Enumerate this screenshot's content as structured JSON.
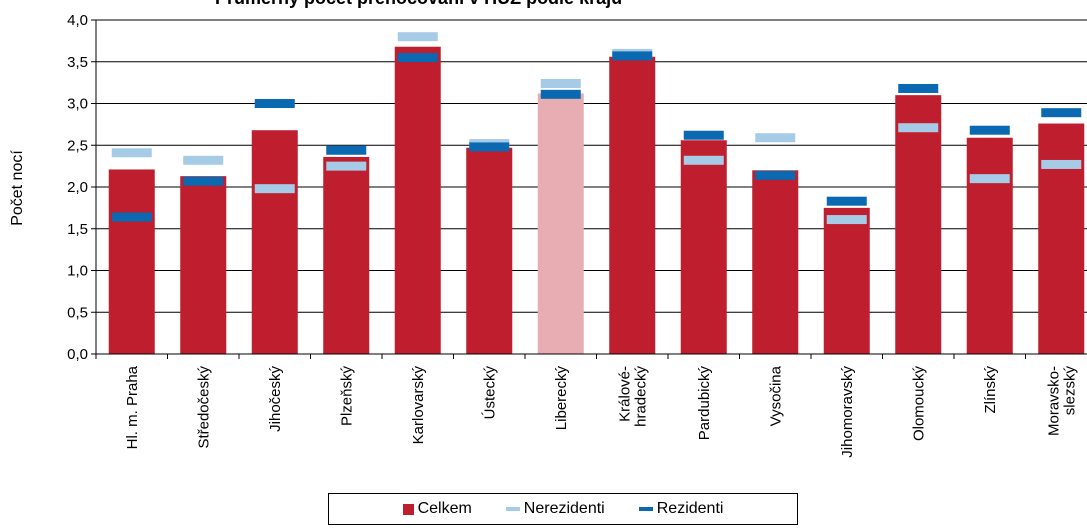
{
  "chart_data": {
    "type": "bar",
    "title": "",
    "ylabel": "Počet nocí",
    "ylim": [
      0,
      4
    ],
    "yticks": [
      "0,0",
      "0,5",
      "1,0",
      "1,5",
      "2,0",
      "2,5",
      "3,0",
      "3,5",
      "4,0"
    ],
    "categories": [
      [
        "Hl. m. Praha"
      ],
      [
        "Středočeský"
      ],
      [
        "Jihočeský"
      ],
      [
        "Plzeňský"
      ],
      [
        "Karlovarský"
      ],
      [
        "Ústecký"
      ],
      [
        "Liberecký"
      ],
      [
        "Králové-",
        "hradecký"
      ],
      [
        "Pardubický"
      ],
      [
        "Vysočina"
      ],
      [
        "Jihomoravský"
      ],
      [
        "Olomoucký"
      ],
      [
        "Zlínský"
      ],
      [
        "Moravsko-",
        "slezský"
      ]
    ],
    "series": [
      {
        "name": "Celkem",
        "kind": "bar",
        "values": [
          2.21,
          2.13,
          2.68,
          2.36,
          3.68,
          2.47,
          3.12,
          3.56,
          2.56,
          2.2,
          1.75,
          3.1,
          2.59,
          2.76
        ]
      },
      {
        "name": "Nerezidenti",
        "kind": "marker",
        "values": [
          2.41,
          2.32,
          1.98,
          2.25,
          3.8,
          2.52,
          3.24,
          3.6,
          2.32,
          2.59,
          1.61,
          2.71,
          2.1,
          2.27
        ]
      },
      {
        "name": "Rezidenti",
        "kind": "marker",
        "values": [
          1.64,
          2.07,
          3.0,
          2.44,
          3.55,
          2.48,
          3.11,
          3.57,
          2.62,
          2.14,
          1.83,
          3.18,
          2.68,
          2.89
        ]
      }
    ],
    "highlight_index": 6,
    "colors": {
      "bar": "#be1e2d",
      "bar_highlight": "#e8adb3",
      "nerezidenti": "#a6cbe6",
      "rezidenti": "#0a69b0"
    },
    "legend_position": "bottom"
  },
  "legend": {
    "celkem": "Celkem",
    "nerezidenti": "Nerezidenti",
    "rezidenti": "Rezidenti"
  },
  "title_text": "Průměrný počet přenocování v HUZ podle krajů"
}
